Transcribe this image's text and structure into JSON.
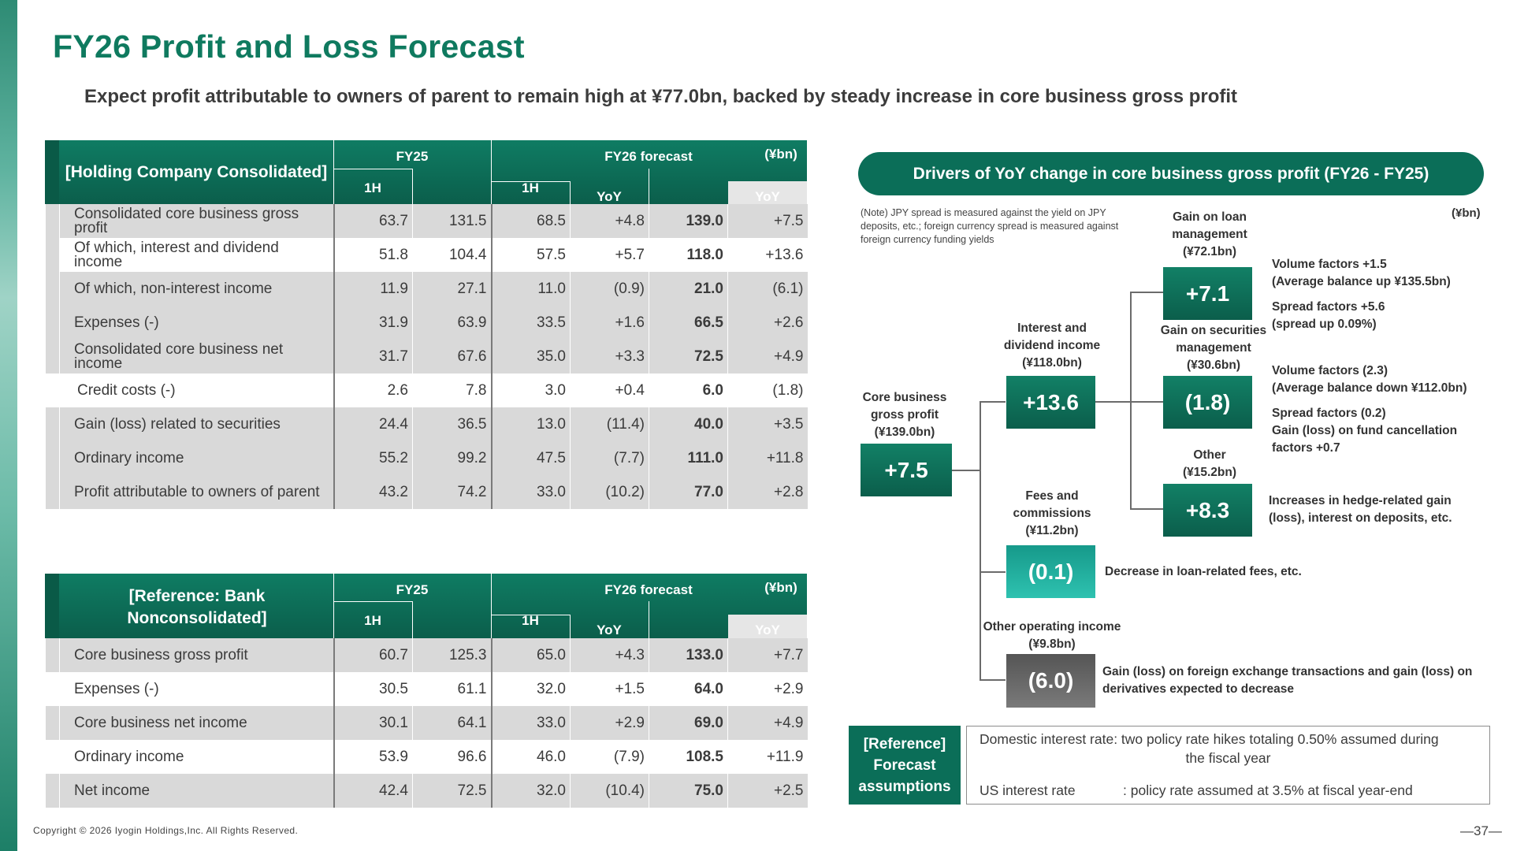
{
  "page": {
    "title": "FY26 Profit and Loss Forecast",
    "subtitle": "Expect profit attributable to owners of parent to remain high at ¥77.0bn, backed by steady increase in core business gross profit",
    "copyright": "Copyright © 2026  Iyogin Holdings,Inc. All Rights Reserved.",
    "page_number": "—37—"
  },
  "table1": {
    "title": "[Holding Company Consolidated]",
    "unit": "(¥bn)",
    "headers": {
      "fy25": "FY25",
      "fy26": "FY26 forecast",
      "h1": "1H",
      "yoy": "YoY"
    },
    "rows": [
      {
        "label": "Consolidated core business gross profit",
        "c": [
          "63.7",
          "131.5",
          "68.5",
          "+4.8",
          "139.0",
          "+7.5"
        ]
      },
      {
        "label": "Of which, interest and dividend income",
        "c": [
          "51.8",
          "104.4",
          "57.5",
          "+5.7",
          "118.0",
          "+13.6"
        ]
      },
      {
        "label": "Of which, non-interest income",
        "c": [
          "11.9",
          "27.1",
          "11.0",
          "(0.9)",
          "21.0",
          "(6.1)"
        ]
      },
      {
        "label": "Expenses (-)",
        "c": [
          "31.9",
          "63.9",
          "33.5",
          "+1.6",
          "66.5",
          "+2.6"
        ]
      },
      {
        "label": "Consolidated core business net income",
        "c": [
          "31.7",
          "67.6",
          "35.0",
          "+3.3",
          "72.5",
          "+4.9"
        ]
      },
      {
        "label": "Credit costs (-)",
        "c": [
          "2.6",
          "7.8",
          "3.0",
          "+0.4",
          "6.0",
          "(1.8)"
        ]
      },
      {
        "label": "Gain (loss) related to securities",
        "c": [
          "24.4",
          "36.5",
          "13.0",
          "(11.4)",
          "40.0",
          "+3.5"
        ]
      },
      {
        "label": "Ordinary income",
        "c": [
          "55.2",
          "99.2",
          "47.5",
          "(7.7)",
          "111.0",
          "+11.8"
        ]
      },
      {
        "label": "Profit attributable to owners of parent",
        "c": [
          "43.2",
          "74.2",
          "33.0",
          "(10.2)",
          "77.0",
          "+2.8"
        ]
      }
    ]
  },
  "table2": {
    "title": "[Reference: Bank Nonconsolidated]",
    "unit": "(¥bn)",
    "headers": {
      "fy25": "FY25",
      "fy26": "FY26 forecast",
      "h1": "1H",
      "yoy": "YoY"
    },
    "rows": [
      {
        "label": "Core business gross profit",
        "c": [
          "60.7",
          "125.3",
          "65.0",
          "+4.3",
          "133.0",
          "+7.7"
        ]
      },
      {
        "label": "Expenses (-)",
        "c": [
          "30.5",
          "61.1",
          "32.0",
          "+1.5",
          "64.0",
          "+2.9"
        ]
      },
      {
        "label": "Core business net income",
        "c": [
          "30.1",
          "64.1",
          "33.0",
          "+2.9",
          "69.0",
          "+4.9"
        ]
      },
      {
        "label": "Ordinary income",
        "c": [
          "53.9",
          "96.6",
          "46.0",
          "(7.9)",
          "108.5",
          "+11.9"
        ]
      },
      {
        "label": "Net income",
        "c": [
          "42.4",
          "72.5",
          "32.0",
          "(10.4)",
          "75.0",
          "+2.5"
        ]
      }
    ]
  },
  "drivers": {
    "title": "Drivers of YoY change in core business gross profit (FY26 - FY25)",
    "note": "(Note) JPY spread is measured against the yield on JPY deposits, etc.; foreign currency spread is measured against foreign currency funding yields",
    "unit": "(¥bn)",
    "core": {
      "label1": "Core business",
      "label2": "gross profit",
      "label3": "(¥139.0bn)",
      "value": "+7.5"
    },
    "interest": {
      "label1": "Interest and",
      "label2": "dividend income",
      "label3": "(¥118.0bn)",
      "value": "+13.6"
    },
    "fees": {
      "label1": "Fees and",
      "label2": "commissions",
      "label3": "(¥11.2bn)",
      "value": "(0.1)",
      "desc": "Decrease in loan-related fees, etc."
    },
    "other_op": {
      "label1": "Other operating income",
      "label2": "(¥9.8bn)",
      "value": "(6.0)",
      "desc1": "Gain (loss) on foreign exchange transactions and gain (loss) on",
      "desc2": "derivatives expected to decrease"
    },
    "loan": {
      "label1": "Gain on loan",
      "label2": "management",
      "label3": "(¥72.1bn)",
      "value": "+7.1",
      "d1": "Volume factors +1.5",
      "d2": "(Average balance up ¥135.5bn)",
      "d3": "Spread factors +5.6",
      "d4": "(spread up 0.09%)"
    },
    "sec": {
      "label1": "Gain on securities",
      "label2": "management",
      "label3": "(¥30.6bn)",
      "value": "(1.8)",
      "d1": "Volume factors (2.3)",
      "d2": "(Average balance down ¥112.0bn)",
      "d3": "Spread factors (0.2)",
      "d4": "Gain (loss) on fund cancellation",
      "d5": "factors +0.7"
    },
    "other": {
      "label1": "Other",
      "label2": "(¥15.2bn)",
      "value": "+8.3",
      "d1": "Increases in hedge-related gain",
      "d2": "(loss), interest on deposits, etc."
    }
  },
  "reference": {
    "label1": "[Reference]",
    "label2": "Forecast",
    "label3": "assumptions",
    "line1": "Domestic interest rate: two policy rate hikes totaling 0.50% assumed during",
    "line2": "the fiscal year",
    "line3a": "US interest rate",
    "line3b": ": policy rate assumed at 3.5% at fiscal year-end"
  },
  "colors": {
    "brand": "#0f7a5f",
    "dark_green": "#0b6e58",
    "light_teal": "#2ab5a3",
    "gray_box": "#666666"
  }
}
